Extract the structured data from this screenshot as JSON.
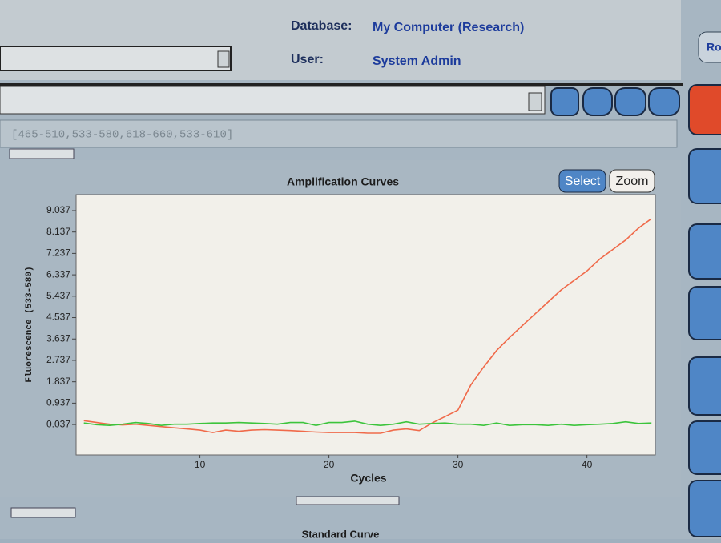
{
  "header": {
    "database_label": "Database:",
    "database_value": "My Computer (Research)",
    "user_label": "User:",
    "user_value": "System Admin",
    "corner_button": "Ro"
  },
  "filter": "[465-510,533-580,618-660,533-610]",
  "buttons": {
    "select": "Select",
    "zoom": "Zoom"
  },
  "chart_data": {
    "type": "line",
    "title": "Amplification Curves",
    "x_label": "Cycles",
    "y_label": "Fluorescence (533-580)",
    "x": [
      1,
      2,
      3,
      4,
      5,
      6,
      7,
      8,
      9,
      10,
      11,
      12,
      13,
      14,
      15,
      16,
      17,
      18,
      19,
      20,
      21,
      22,
      23,
      24,
      25,
      26,
      27,
      28,
      29,
      30,
      31,
      32,
      33,
      34,
      35,
      36,
      37,
      38,
      39,
      40,
      41,
      42,
      43,
      44,
      45
    ],
    "series": [
      {
        "color": "#f06a4a",
        "values": [
          0.2,
          0.12,
          0.05,
          0.02,
          0.05,
          0.0,
          -0.05,
          -0.1,
          -0.15,
          -0.2,
          -0.3,
          -0.2,
          -0.25,
          -0.2,
          -0.18,
          -0.2,
          -0.22,
          -0.25,
          -0.28,
          -0.3,
          -0.3,
          -0.3,
          -0.33,
          -0.33,
          -0.2,
          -0.15,
          -0.22,
          0.1,
          0.37,
          0.64,
          1.7,
          2.46,
          3.15,
          3.7,
          4.2,
          4.7,
          5.2,
          5.7,
          6.1,
          6.5,
          7.0,
          7.4,
          7.8,
          8.3,
          8.7
        ]
      },
      {
        "color": "#3cc43c",
        "values": [
          0.1,
          0.03,
          0.0,
          0.05,
          0.12,
          0.08,
          0.0,
          0.05,
          0.05,
          0.08,
          0.1,
          0.1,
          0.12,
          0.1,
          0.08,
          0.05,
          0.12,
          0.12,
          0.0,
          0.12,
          0.12,
          0.18,
          0.05,
          0.0,
          0.05,
          0.15,
          0.05,
          0.08,
          0.1,
          0.05,
          0.05,
          0.0,
          0.1,
          0.0,
          0.03,
          0.03,
          0.0,
          0.05,
          0.0,
          0.03,
          0.05,
          0.08,
          0.15,
          0.08,
          0.1
        ]
      }
    ],
    "xlim": [
      0.4,
      45.3
    ],
    "xticks": [
      10,
      20,
      30,
      40
    ],
    "ylim": [
      -1.24,
      9.71
    ],
    "yticks": [
      0.037,
      0.937,
      1.837,
      2.737,
      3.637,
      4.537,
      5.437,
      6.337,
      7.237,
      8.137,
      9.037
    ]
  },
  "next_panel_title": "Standard Curve"
}
